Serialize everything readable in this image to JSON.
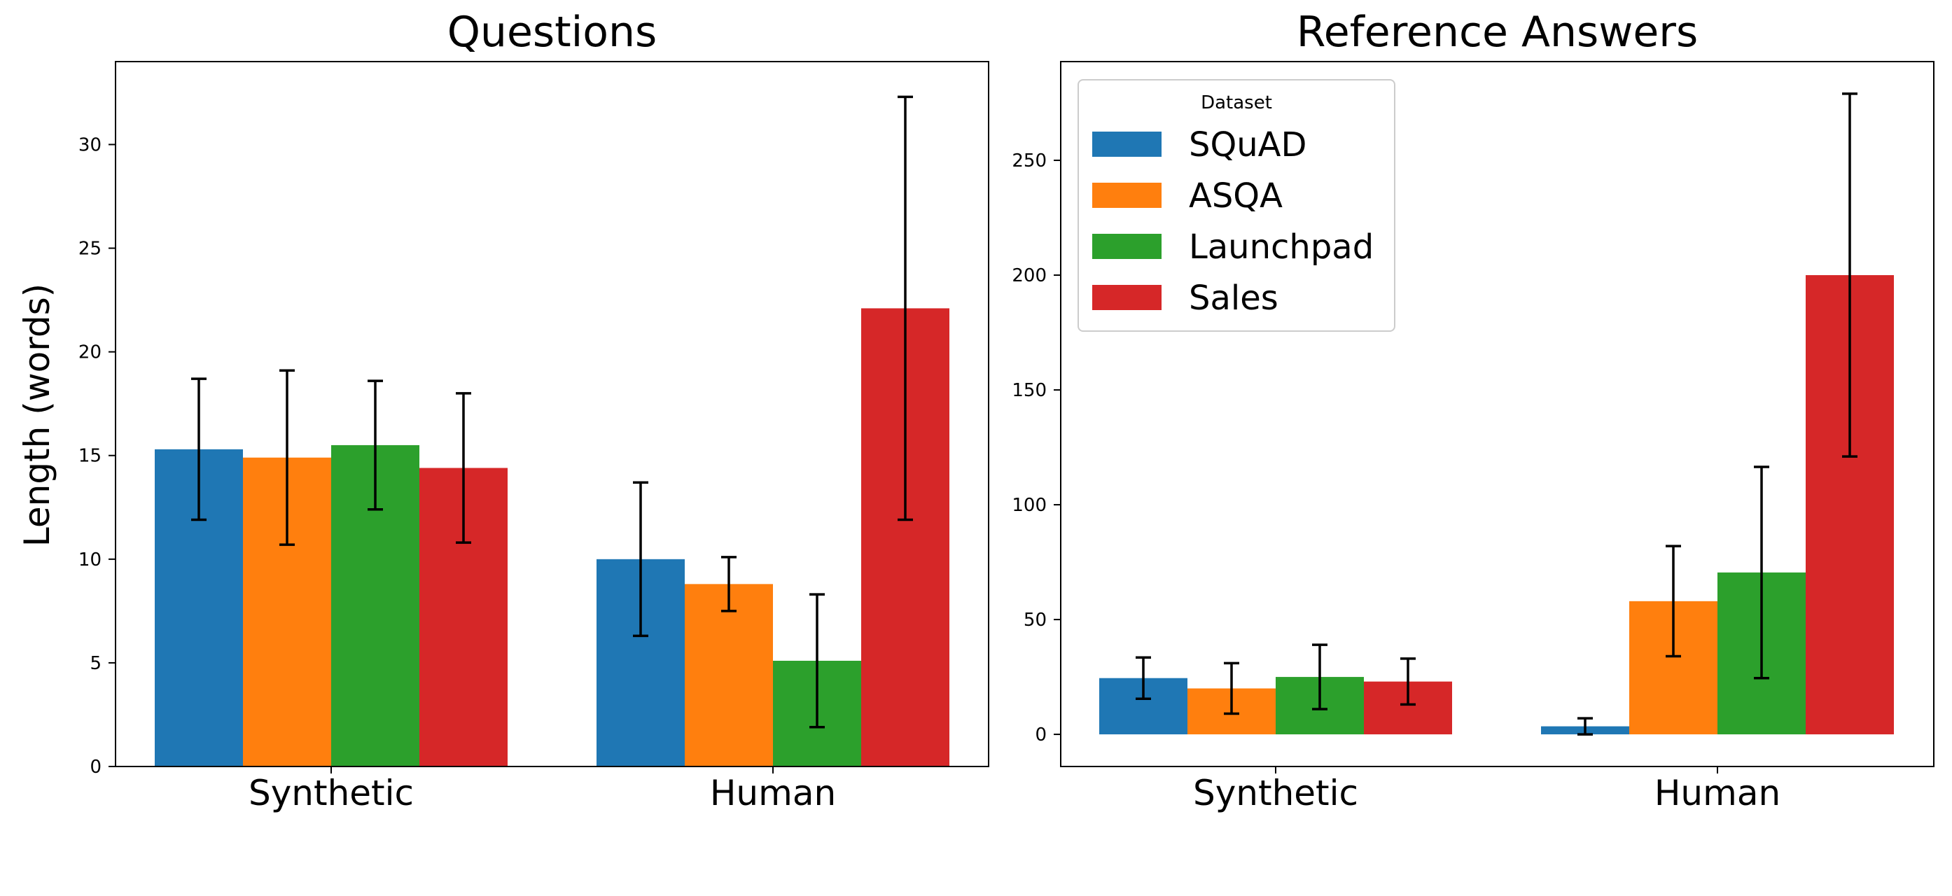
{
  "figure": {
    "ylabel": "Length (words)"
  },
  "chart_data": [
    {
      "type": "bar",
      "title": "Questions",
      "xlabel": "",
      "ylabel": "Length (words)",
      "categories": [
        "Synthetic",
        "Human"
      ],
      "ylim": [
        0,
        34
      ],
      "yticks": [
        0,
        5,
        10,
        15,
        20,
        25,
        30
      ],
      "series": [
        {
          "name": "SQuAD",
          "color": "#1f77b4",
          "values": [
            15.3,
            10.0
          ],
          "errors": [
            3.4,
            3.7
          ]
        },
        {
          "name": "ASQA",
          "color": "#ff7f0e",
          "values": [
            14.9,
            8.8
          ],
          "errors": [
            4.2,
            1.3
          ]
        },
        {
          "name": "Launchpad",
          "color": "#2ca02c",
          "values": [
            15.5,
            5.1
          ],
          "errors": [
            3.1,
            3.2
          ]
        },
        {
          "name": "Sales",
          "color": "#d62728",
          "values": [
            14.4,
            22.1
          ],
          "errors": [
            3.6,
            10.2
          ]
        }
      ],
      "legend": null,
      "grid": false
    },
    {
      "type": "bar",
      "title": "Reference Answers",
      "xlabel": "",
      "ylabel": "",
      "categories": [
        "Synthetic",
        "Human"
      ],
      "ylim": [
        -14,
        293
      ],
      "yticks": [
        0,
        50,
        100,
        150,
        200,
        250
      ],
      "series": [
        {
          "name": "SQuAD",
          "color": "#1f77b4",
          "values": [
            24.5,
            3.5
          ],
          "errors": [
            9.0,
            3.5
          ]
        },
        {
          "name": "ASQA",
          "color": "#ff7f0e",
          "values": [
            20.0,
            58.0
          ],
          "errors": [
            11.0,
            24.0
          ]
        },
        {
          "name": "Launchpad",
          "color": "#2ca02c",
          "values": [
            25.0,
            70.5
          ],
          "errors": [
            14.0,
            46.0
          ]
        },
        {
          "name": "Sales",
          "color": "#d62728",
          "values": [
            23.0,
            200.0
          ],
          "errors": [
            10.0,
            79.0
          ]
        }
      ],
      "legend": {
        "title": "Dataset",
        "placement": "top-left"
      },
      "grid": false
    }
  ]
}
